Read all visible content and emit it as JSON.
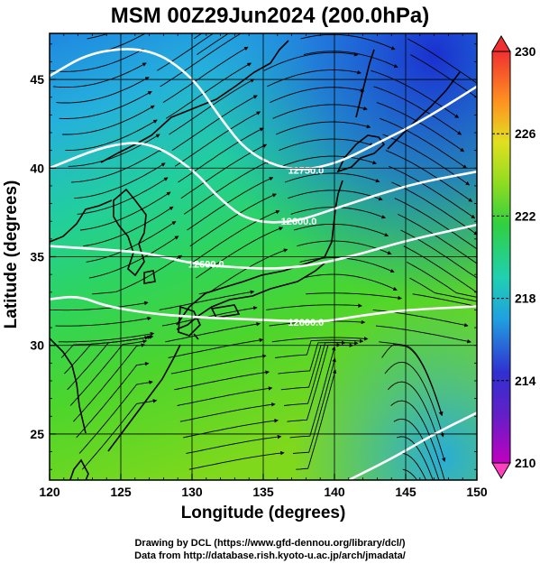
{
  "title": "MSM 00Z29Jun2024 (200.0hPa)",
  "xlabel": "Longitude (degrees)",
  "ylabel": "Latitude (degrees)",
  "credits": {
    "line1": "Drawing by DCL (https://www.gfd-dennou.org/library/dcl/)",
    "line2": "Data from http://database.rish.kyoto-u.ac.jp/arch/jmadata/"
  },
  "map": {
    "lon_range": [
      120,
      150
    ],
    "lat_range": [
      22.4,
      47.6
    ],
    "lon_ticks": [
      "120",
      "125",
      "130",
      "135",
      "140",
      "145",
      "150"
    ],
    "lat_ticks": [
      "25",
      "30",
      "35",
      "40",
      "45"
    ],
    "grid": true,
    "streamlines": true
  },
  "colorbar": {
    "range": [
      210,
      230
    ],
    "ticks": [
      "210",
      "214",
      "218",
      "222",
      "226",
      "230"
    ],
    "colors": [
      "#c000c0",
      "#3030d0",
      "#20a0e0",
      "#20d0b0",
      "#30d040",
      "#c0e020",
      "#f0d020",
      "#ff8020",
      "#f03030"
    ],
    "extend": "both"
  },
  "contours": [
    {
      "label": "12750.0",
      "points": [
        [
          120,
          45.2
        ],
        [
          123,
          46.6
        ],
        [
          127,
          46.8
        ],
        [
          130,
          45.2
        ],
        [
          132,
          42.8
        ],
        [
          134,
          40.8
        ],
        [
          137,
          39.8
        ],
        [
          140,
          40.2
        ],
        [
          143,
          41.4
        ],
        [
          146,
          42.6
        ],
        [
          150,
          44.6
        ]
      ],
      "label_at": [
        138,
        39.9
      ]
    },
    {
      "label": "12600.0",
      "points": [
        [
          120,
          40.0
        ],
        [
          124,
          41.3
        ],
        [
          127,
          41.5
        ],
        [
          130,
          40.0
        ],
        [
          132,
          38.2
        ],
        [
          134,
          37.0
        ],
        [
          137,
          36.9
        ],
        [
          140,
          37.7
        ],
        [
          143,
          38.5
        ],
        [
          146,
          39.2
        ],
        [
          150,
          39.8
        ]
      ],
      "label_at": [
        137.5,
        37.0
      ]
    },
    {
      "label": "12600.0",
      "points": [
        [
          120,
          35.6
        ],
        [
          124,
          35.4
        ],
        [
          127,
          35.2
        ],
        [
          130,
          34.6
        ],
        [
          133,
          34.4
        ],
        [
          136,
          34.3
        ],
        [
          139,
          34.6
        ],
        [
          142,
          35.2
        ],
        [
          145,
          35.9
        ],
        [
          150,
          36.8
        ]
      ],
      "label_at": [
        131,
        34.6
      ]
    },
    {
      "label": "12600.0",
      "points": [
        [
          120,
          32.6
        ],
        [
          122,
          32.8
        ],
        [
          124,
          32.2
        ],
        [
          127,
          31.8
        ],
        [
          130,
          31.6
        ],
        [
          133,
          31.5
        ],
        [
          136,
          31.4
        ],
        [
          139,
          31.3
        ],
        [
          142,
          31.7
        ],
        [
          145,
          32.0
        ],
        [
          150,
          32.2
        ]
      ],
      "label_at": [
        138,
        31.3
      ]
    },
    {
      "label": "",
      "points": [
        [
          141,
          22.4
        ],
        [
          144,
          23.6
        ],
        [
          147,
          25.0
        ],
        [
          150,
          26.2
        ]
      ],
      "label_at": null
    }
  ]
}
